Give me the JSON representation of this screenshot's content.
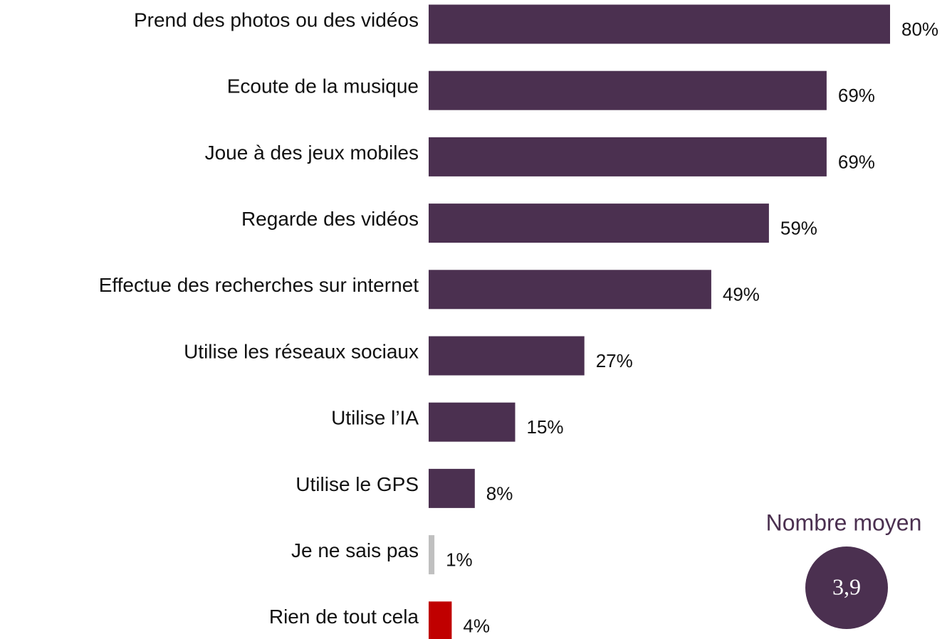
{
  "chart_data": {
    "type": "barh",
    "categories": [
      "Prend des photos ou des vidéos",
      "Ecoute de la musique",
      "Joue à des jeux mobiles",
      "Regarde des vidéos",
      "Effectue des recherches sur internet",
      "Utilise les réseaux sociaux",
      "Utilise l’IA",
      "Utilise le GPS",
      "Je ne sais pas",
      "Rien de tout cela"
    ],
    "values": [
      80,
      69,
      69,
      59,
      49,
      27,
      15,
      8,
      1,
      4
    ],
    "value_labels": [
      "80%",
      "69%",
      "69%",
      "59%",
      "49%",
      "27%",
      "15%",
      "8%",
      "1%",
      "4%"
    ],
    "colors": [
      "#4b3050",
      "#4b3050",
      "#4b3050",
      "#4b3050",
      "#4b3050",
      "#4b3050",
      "#4b3050",
      "#4b3050",
      "#c0c0c0",
      "#c00000"
    ],
    "xlim": [
      0,
      80
    ],
    "annotation": {
      "label": "Nombre moyen",
      "value": 3.9,
      "value_label": "3,9"
    }
  }
}
